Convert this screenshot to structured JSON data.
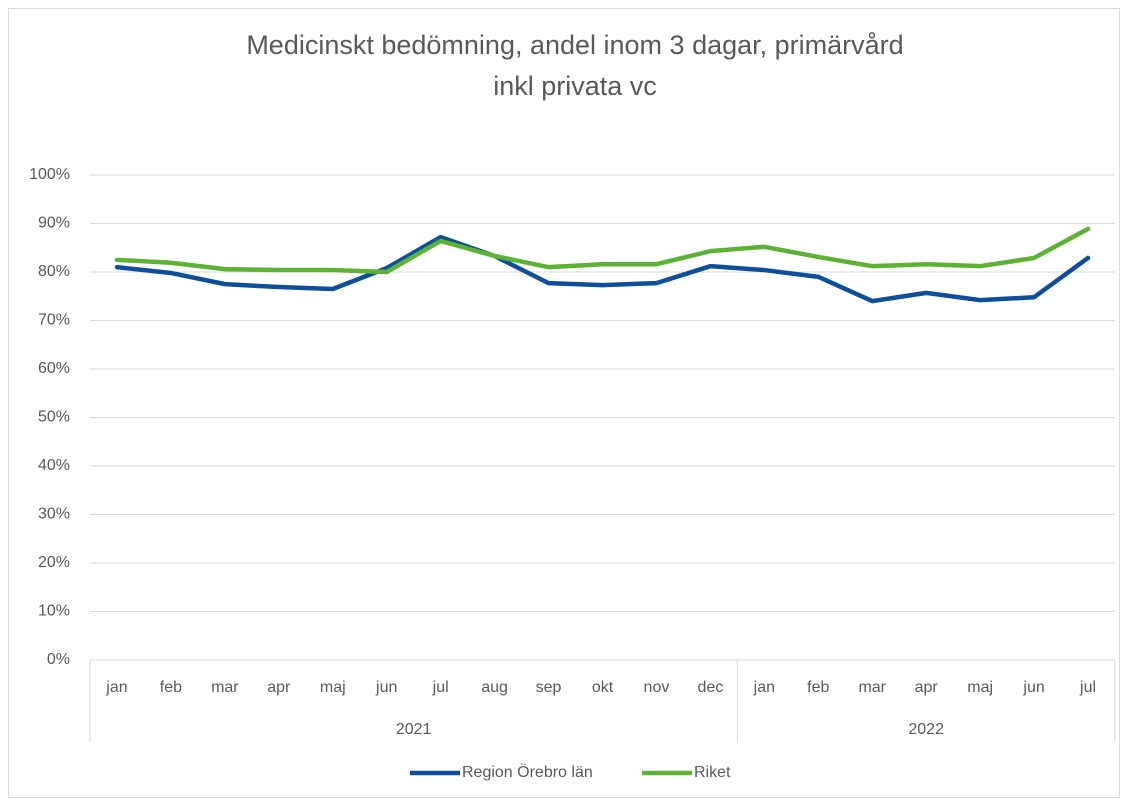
{
  "chart_data": {
    "type": "line",
    "title": [
      "Medicinskt bedömning, andel inom 3 dagar, primärvård",
      "inkl privata vc"
    ],
    "groups": [
      {
        "name": "2021",
        "categories": [
          "jan",
          "feb",
          "mar",
          "apr",
          "maj",
          "jun",
          "jul",
          "aug",
          "sep",
          "okt",
          "nov",
          "dec"
        ]
      },
      {
        "name": "2022",
        "categories": [
          "jan",
          "feb",
          "mar",
          "apr",
          "maj",
          "jun",
          "jul"
        ]
      }
    ],
    "series": [
      {
        "name": "Region Örebro län",
        "color": "#0f4e9b",
        "values": [
          81.0,
          79.8,
          77.5,
          76.9,
          76.5,
          80.8,
          87.2,
          83.3,
          77.7,
          77.3,
          77.7,
          81.2,
          80.4,
          79.0,
          74.0,
          75.7,
          74.2,
          74.8,
          82.9
        ]
      },
      {
        "name": "Riket",
        "color": "#5cb234",
        "values": [
          82.5,
          81.9,
          80.6,
          80.4,
          80.4,
          80.0,
          86.4,
          83.3,
          81.0,
          81.6,
          81.6,
          84.3,
          85.2,
          83.1,
          81.2,
          81.6,
          81.2,
          82.9,
          88.9
        ]
      }
    ],
    "ylim": [
      0,
      100
    ],
    "yticks": [
      {
        "value": 0,
        "label": "0%"
      },
      {
        "value": 10,
        "label": "10%"
      },
      {
        "value": 20,
        "label": "20%"
      },
      {
        "value": 30,
        "label": "30%"
      },
      {
        "value": 40,
        "label": "40%"
      },
      {
        "value": 50,
        "label": "50%"
      },
      {
        "value": 60,
        "label": "60%"
      },
      {
        "value": 70,
        "label": "70%"
      },
      {
        "value": 80,
        "label": "80%"
      },
      {
        "value": 90,
        "label": "90%"
      },
      {
        "value": 100,
        "label": "100%"
      }
    ],
    "grid": true,
    "legend": "bottom"
  }
}
